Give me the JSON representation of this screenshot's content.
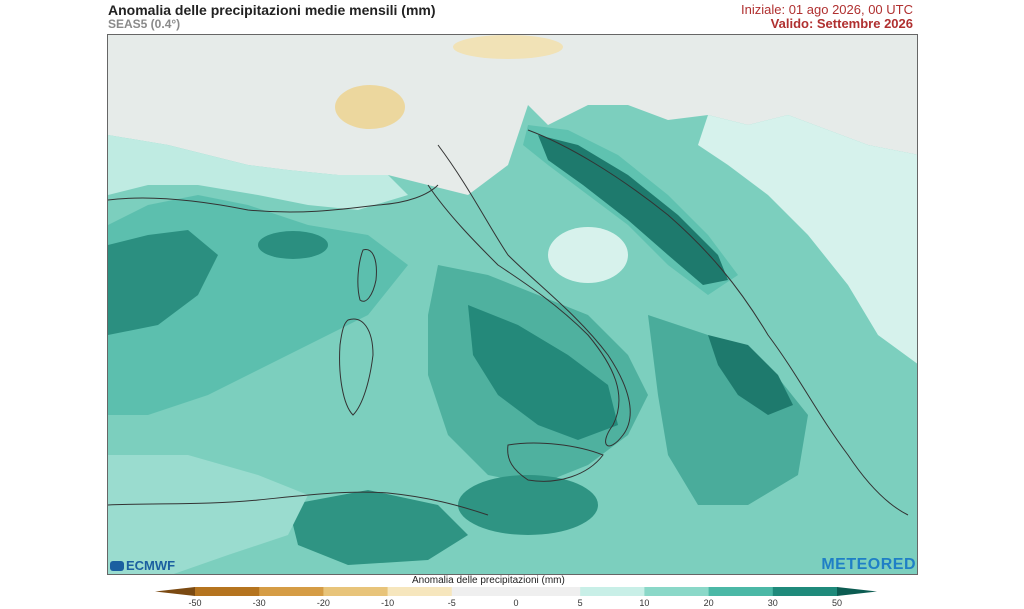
{
  "header": {
    "title": "Anomalia delle precipitazioni medie mensili (mm)",
    "subtitle": "SEAS5 (0.4°)",
    "init_label": "Iniziale: 01 ago 2026, 00 UTC",
    "valid_label": "Valido: Settembre 2026"
  },
  "logos": {
    "left": "ECMWF",
    "right": "METEORED"
  },
  "colorbar": {
    "title": "Anomalia delle precipitazioni (mm)",
    "ticks": [
      "-50",
      "-30",
      "-20",
      "-10",
      "-5",
      "0",
      "5",
      "10",
      "20",
      "30",
      "50"
    ],
    "colors": [
      "#7b4a12",
      "#b5741f",
      "#d59c45",
      "#e8c47a",
      "#f6e6bd",
      "#efefef",
      "#efefef",
      "#c8efe7",
      "#8ad8c8",
      "#4bb8a6",
      "#1f8a7b",
      "#0c5c52"
    ]
  }
}
